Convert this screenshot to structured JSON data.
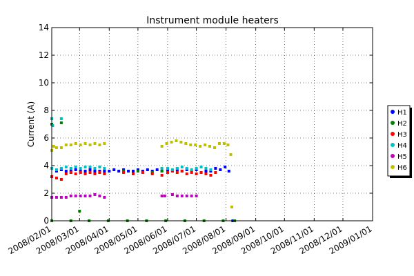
{
  "chart_data": {
    "type": "scatter",
    "title": "Instrument module heaters",
    "xlabel": "",
    "ylabel": "Current (A)",
    "ylim": [
      0,
      14
    ],
    "yticks": [
      0,
      2,
      4,
      6,
      8,
      10,
      12,
      14
    ],
    "xlim": [
      "2008-02-01",
      "2009-01-01"
    ],
    "xticks": [
      "2008/02/01",
      "2008/03/01",
      "2008/04/01",
      "2008/05/01",
      "2008/06/01",
      "2008/07/01",
      "2008/08/01",
      "2008/09/01",
      "2008/10/01",
      "2008/11/01",
      "2008/12/01",
      "2009/01/01"
    ],
    "grid": true,
    "legend_position": "right",
    "series": [
      {
        "name": "H1",
        "color": "#0000ff",
        "points": [
          {
            "x": "2008-02-01",
            "y": 3.8
          },
          {
            "x": "2008-02-06",
            "y": 3.6
          },
          {
            "x": "2008-02-11",
            "y": 3.7
          },
          {
            "x": "2008-02-16",
            "y": 3.6
          },
          {
            "x": "2008-02-21",
            "y": 3.6
          },
          {
            "x": "2008-02-26",
            "y": 3.7
          },
          {
            "x": "2008-03-02",
            "y": 3.6
          },
          {
            "x": "2008-03-07",
            "y": 3.6
          },
          {
            "x": "2008-03-12",
            "y": 3.7
          },
          {
            "x": "2008-03-17",
            "y": 3.6
          },
          {
            "x": "2008-03-22",
            "y": 3.6
          },
          {
            "x": "2008-03-27",
            "y": 3.6
          },
          {
            "x": "2008-04-01",
            "y": 3.6
          },
          {
            "x": "2008-04-06",
            "y": 3.7
          },
          {
            "x": "2008-04-11",
            "y": 3.6
          },
          {
            "x": "2008-04-16",
            "y": 3.7
          },
          {
            "x": "2008-04-21",
            "y": 3.6
          },
          {
            "x": "2008-04-26",
            "y": 3.6
          },
          {
            "x": "2008-05-01",
            "y": 3.7
          },
          {
            "x": "2008-05-06",
            "y": 3.6
          },
          {
            "x": "2008-05-11",
            "y": 3.7
          },
          {
            "x": "2008-05-16",
            "y": 3.6
          },
          {
            "x": "2008-05-21",
            "y": 3.7
          },
          {
            "x": "2008-05-26",
            "y": 3.6
          },
          {
            "x": "2008-06-01",
            "y": 3.7
          },
          {
            "x": "2008-06-06",
            "y": 3.6
          },
          {
            "x": "2008-06-11",
            "y": 3.7
          },
          {
            "x": "2008-06-16",
            "y": 3.6
          },
          {
            "x": "2008-06-21",
            "y": 3.7
          },
          {
            "x": "2008-06-26",
            "y": 3.6
          },
          {
            "x": "2008-07-01",
            "y": 3.7
          },
          {
            "x": "2008-07-06",
            "y": 3.5
          },
          {
            "x": "2008-07-11",
            "y": 3.6
          },
          {
            "x": "2008-07-16",
            "y": 3.6
          },
          {
            "x": "2008-07-21",
            "y": 3.8
          },
          {
            "x": "2008-07-26",
            "y": 3.7
          },
          {
            "x": "2008-07-31",
            "y": 3.9
          },
          {
            "x": "2008-08-04",
            "y": 3.6
          },
          {
            "x": "2008-08-08",
            "y": 0.0
          }
        ]
      },
      {
        "name": "H2",
        "color": "#008000",
        "points": [
          {
            "x": "2008-02-01",
            "y": 7.0
          },
          {
            "x": "2008-02-11",
            "y": 7.1
          },
          {
            "x": "2008-03-01",
            "y": 0.7
          },
          {
            "x": "2008-04-16",
            "y": 3.6
          },
          {
            "x": "2008-05-01",
            "y": 3.6
          },
          {
            "x": "2008-05-16",
            "y": 3.5
          },
          {
            "x": "2008-05-26",
            "y": 3.6
          },
          {
            "x": "2008-02-01",
            "y": 0.0
          },
          {
            "x": "2008-02-21",
            "y": 0.0
          },
          {
            "x": "2008-03-11",
            "y": 0.0
          },
          {
            "x": "2008-03-31",
            "y": 0.0
          },
          {
            "x": "2008-04-20",
            "y": 0.0
          },
          {
            "x": "2008-05-10",
            "y": 0.0
          },
          {
            "x": "2008-05-30",
            "y": 0.0
          },
          {
            "x": "2008-06-19",
            "y": 0.0
          },
          {
            "x": "2008-07-09",
            "y": 0.0
          },
          {
            "x": "2008-07-29",
            "y": 0.0
          },
          {
            "x": "2008-08-10",
            "y": 0.0
          }
        ]
      },
      {
        "name": "H3",
        "color": "#ff0000",
        "points": [
          {
            "x": "2008-02-01",
            "y": 3.2
          },
          {
            "x": "2008-02-06",
            "y": 3.1
          },
          {
            "x": "2008-02-11",
            "y": 3.0
          },
          {
            "x": "2008-02-16",
            "y": 3.4
          },
          {
            "x": "2008-02-21",
            "y": 3.5
          },
          {
            "x": "2008-02-26",
            "y": 3.4
          },
          {
            "x": "2008-03-02",
            "y": 3.5
          },
          {
            "x": "2008-03-07",
            "y": 3.4
          },
          {
            "x": "2008-03-12",
            "y": 3.5
          },
          {
            "x": "2008-03-17",
            "y": 3.4
          },
          {
            "x": "2008-03-22",
            "y": 3.5
          },
          {
            "x": "2008-03-27",
            "y": 3.4
          },
          {
            "x": "2008-04-16",
            "y": 3.5
          },
          {
            "x": "2008-04-26",
            "y": 3.4
          },
          {
            "x": "2008-05-06",
            "y": 3.5
          },
          {
            "x": "2008-05-16",
            "y": 3.4
          },
          {
            "x": "2008-05-26",
            "y": 3.3
          },
          {
            "x": "2008-06-01",
            "y": 3.5
          },
          {
            "x": "2008-06-06",
            "y": 3.6
          },
          {
            "x": "2008-06-11",
            "y": 3.5
          },
          {
            "x": "2008-06-16",
            "y": 3.6
          },
          {
            "x": "2008-06-21",
            "y": 3.4
          },
          {
            "x": "2008-06-26",
            "y": 3.5
          },
          {
            "x": "2008-07-01",
            "y": 3.4
          },
          {
            "x": "2008-07-06",
            "y": 3.5
          },
          {
            "x": "2008-07-11",
            "y": 3.4
          },
          {
            "x": "2008-07-16",
            "y": 3.3
          },
          {
            "x": "2008-07-21",
            "y": 3.5
          }
        ]
      },
      {
        "name": "H4",
        "color": "#00bfbf",
        "points": [
          {
            "x": "2008-02-01",
            "y": 7.4
          },
          {
            "x": "2008-02-02",
            "y": 6.9
          },
          {
            "x": "2008-02-11",
            "y": 7.4
          },
          {
            "x": "2008-02-01",
            "y": 3.8
          },
          {
            "x": "2008-02-06",
            "y": 3.7
          },
          {
            "x": "2008-02-11",
            "y": 3.8
          },
          {
            "x": "2008-02-16",
            "y": 3.9
          },
          {
            "x": "2008-02-21",
            "y": 3.8
          },
          {
            "x": "2008-02-26",
            "y": 3.9
          },
          {
            "x": "2008-03-02",
            "y": 3.8
          },
          {
            "x": "2008-03-07",
            "y": 3.9
          },
          {
            "x": "2008-03-12",
            "y": 3.9
          },
          {
            "x": "2008-03-17",
            "y": 3.8
          },
          {
            "x": "2008-03-22",
            "y": 3.9
          },
          {
            "x": "2008-03-27",
            "y": 3.8
          },
          {
            "x": "2008-05-26",
            "y": 3.8
          },
          {
            "x": "2008-06-01",
            "y": 3.8
          },
          {
            "x": "2008-06-06",
            "y": 3.7
          },
          {
            "x": "2008-06-11",
            "y": 3.8
          },
          {
            "x": "2008-06-16",
            "y": 3.9
          },
          {
            "x": "2008-06-21",
            "y": 3.8
          },
          {
            "x": "2008-06-26",
            "y": 3.7
          },
          {
            "x": "2008-07-01",
            "y": 3.8
          },
          {
            "x": "2008-07-06",
            "y": 3.9
          },
          {
            "x": "2008-07-11",
            "y": 3.8
          },
          {
            "x": "2008-07-16",
            "y": 3.7
          }
        ]
      },
      {
        "name": "H5",
        "color": "#bf00bf",
        "points": [
          {
            "x": "2008-02-01",
            "y": 1.7
          },
          {
            "x": "2008-02-06",
            "y": 1.7
          },
          {
            "x": "2008-02-11",
            "y": 1.7
          },
          {
            "x": "2008-02-16",
            "y": 1.7
          },
          {
            "x": "2008-02-21",
            "y": 1.8
          },
          {
            "x": "2008-02-26",
            "y": 1.8
          },
          {
            "x": "2008-03-02",
            "y": 1.8
          },
          {
            "x": "2008-03-07",
            "y": 1.8
          },
          {
            "x": "2008-03-12",
            "y": 1.8
          },
          {
            "x": "2008-03-17",
            "y": 1.9
          },
          {
            "x": "2008-03-22",
            "y": 1.8
          },
          {
            "x": "2008-03-27",
            "y": 1.7
          },
          {
            "x": "2008-05-26",
            "y": 1.8
          },
          {
            "x": "2008-05-29",
            "y": 1.8
          },
          {
            "x": "2008-06-06",
            "y": 1.9
          },
          {
            "x": "2008-06-11",
            "y": 1.8
          },
          {
            "x": "2008-06-16",
            "y": 1.8
          },
          {
            "x": "2008-06-21",
            "y": 1.8
          },
          {
            "x": "2008-06-26",
            "y": 1.8
          },
          {
            "x": "2008-07-01",
            "y": 1.8
          }
        ]
      },
      {
        "name": "H6",
        "color": "#bfbf00",
        "points": [
          {
            "x": "2008-02-01",
            "y": 5.1
          },
          {
            "x": "2008-02-03",
            "y": 5.4
          },
          {
            "x": "2008-02-06",
            "y": 5.3
          },
          {
            "x": "2008-02-11",
            "y": 5.3
          },
          {
            "x": "2008-02-16",
            "y": 5.5
          },
          {
            "x": "2008-02-21",
            "y": 5.5
          },
          {
            "x": "2008-02-26",
            "y": 5.6
          },
          {
            "x": "2008-03-02",
            "y": 5.5
          },
          {
            "x": "2008-03-07",
            "y": 5.6
          },
          {
            "x": "2008-03-12",
            "y": 5.5
          },
          {
            "x": "2008-03-17",
            "y": 5.6
          },
          {
            "x": "2008-03-22",
            "y": 5.5
          },
          {
            "x": "2008-03-27",
            "y": 5.6
          },
          {
            "x": "2008-05-26",
            "y": 5.4
          },
          {
            "x": "2008-05-31",
            "y": 5.6
          },
          {
            "x": "2008-06-05",
            "y": 5.7
          },
          {
            "x": "2008-06-10",
            "y": 5.8
          },
          {
            "x": "2008-06-15",
            "y": 5.7
          },
          {
            "x": "2008-06-20",
            "y": 5.6
          },
          {
            "x": "2008-06-25",
            "y": 5.5
          },
          {
            "x": "2008-06-30",
            "y": 5.5
          },
          {
            "x": "2008-07-05",
            "y": 5.4
          },
          {
            "x": "2008-07-10",
            "y": 5.5
          },
          {
            "x": "2008-07-15",
            "y": 5.4
          },
          {
            "x": "2008-07-20",
            "y": 5.3
          },
          {
            "x": "2008-07-25",
            "y": 5.6
          },
          {
            "x": "2008-07-30",
            "y": 5.6
          },
          {
            "x": "2008-08-03",
            "y": 5.5
          },
          {
            "x": "2008-08-06",
            "y": 4.8
          },
          {
            "x": "2008-08-07",
            "y": 1.0
          }
        ]
      }
    ]
  }
}
